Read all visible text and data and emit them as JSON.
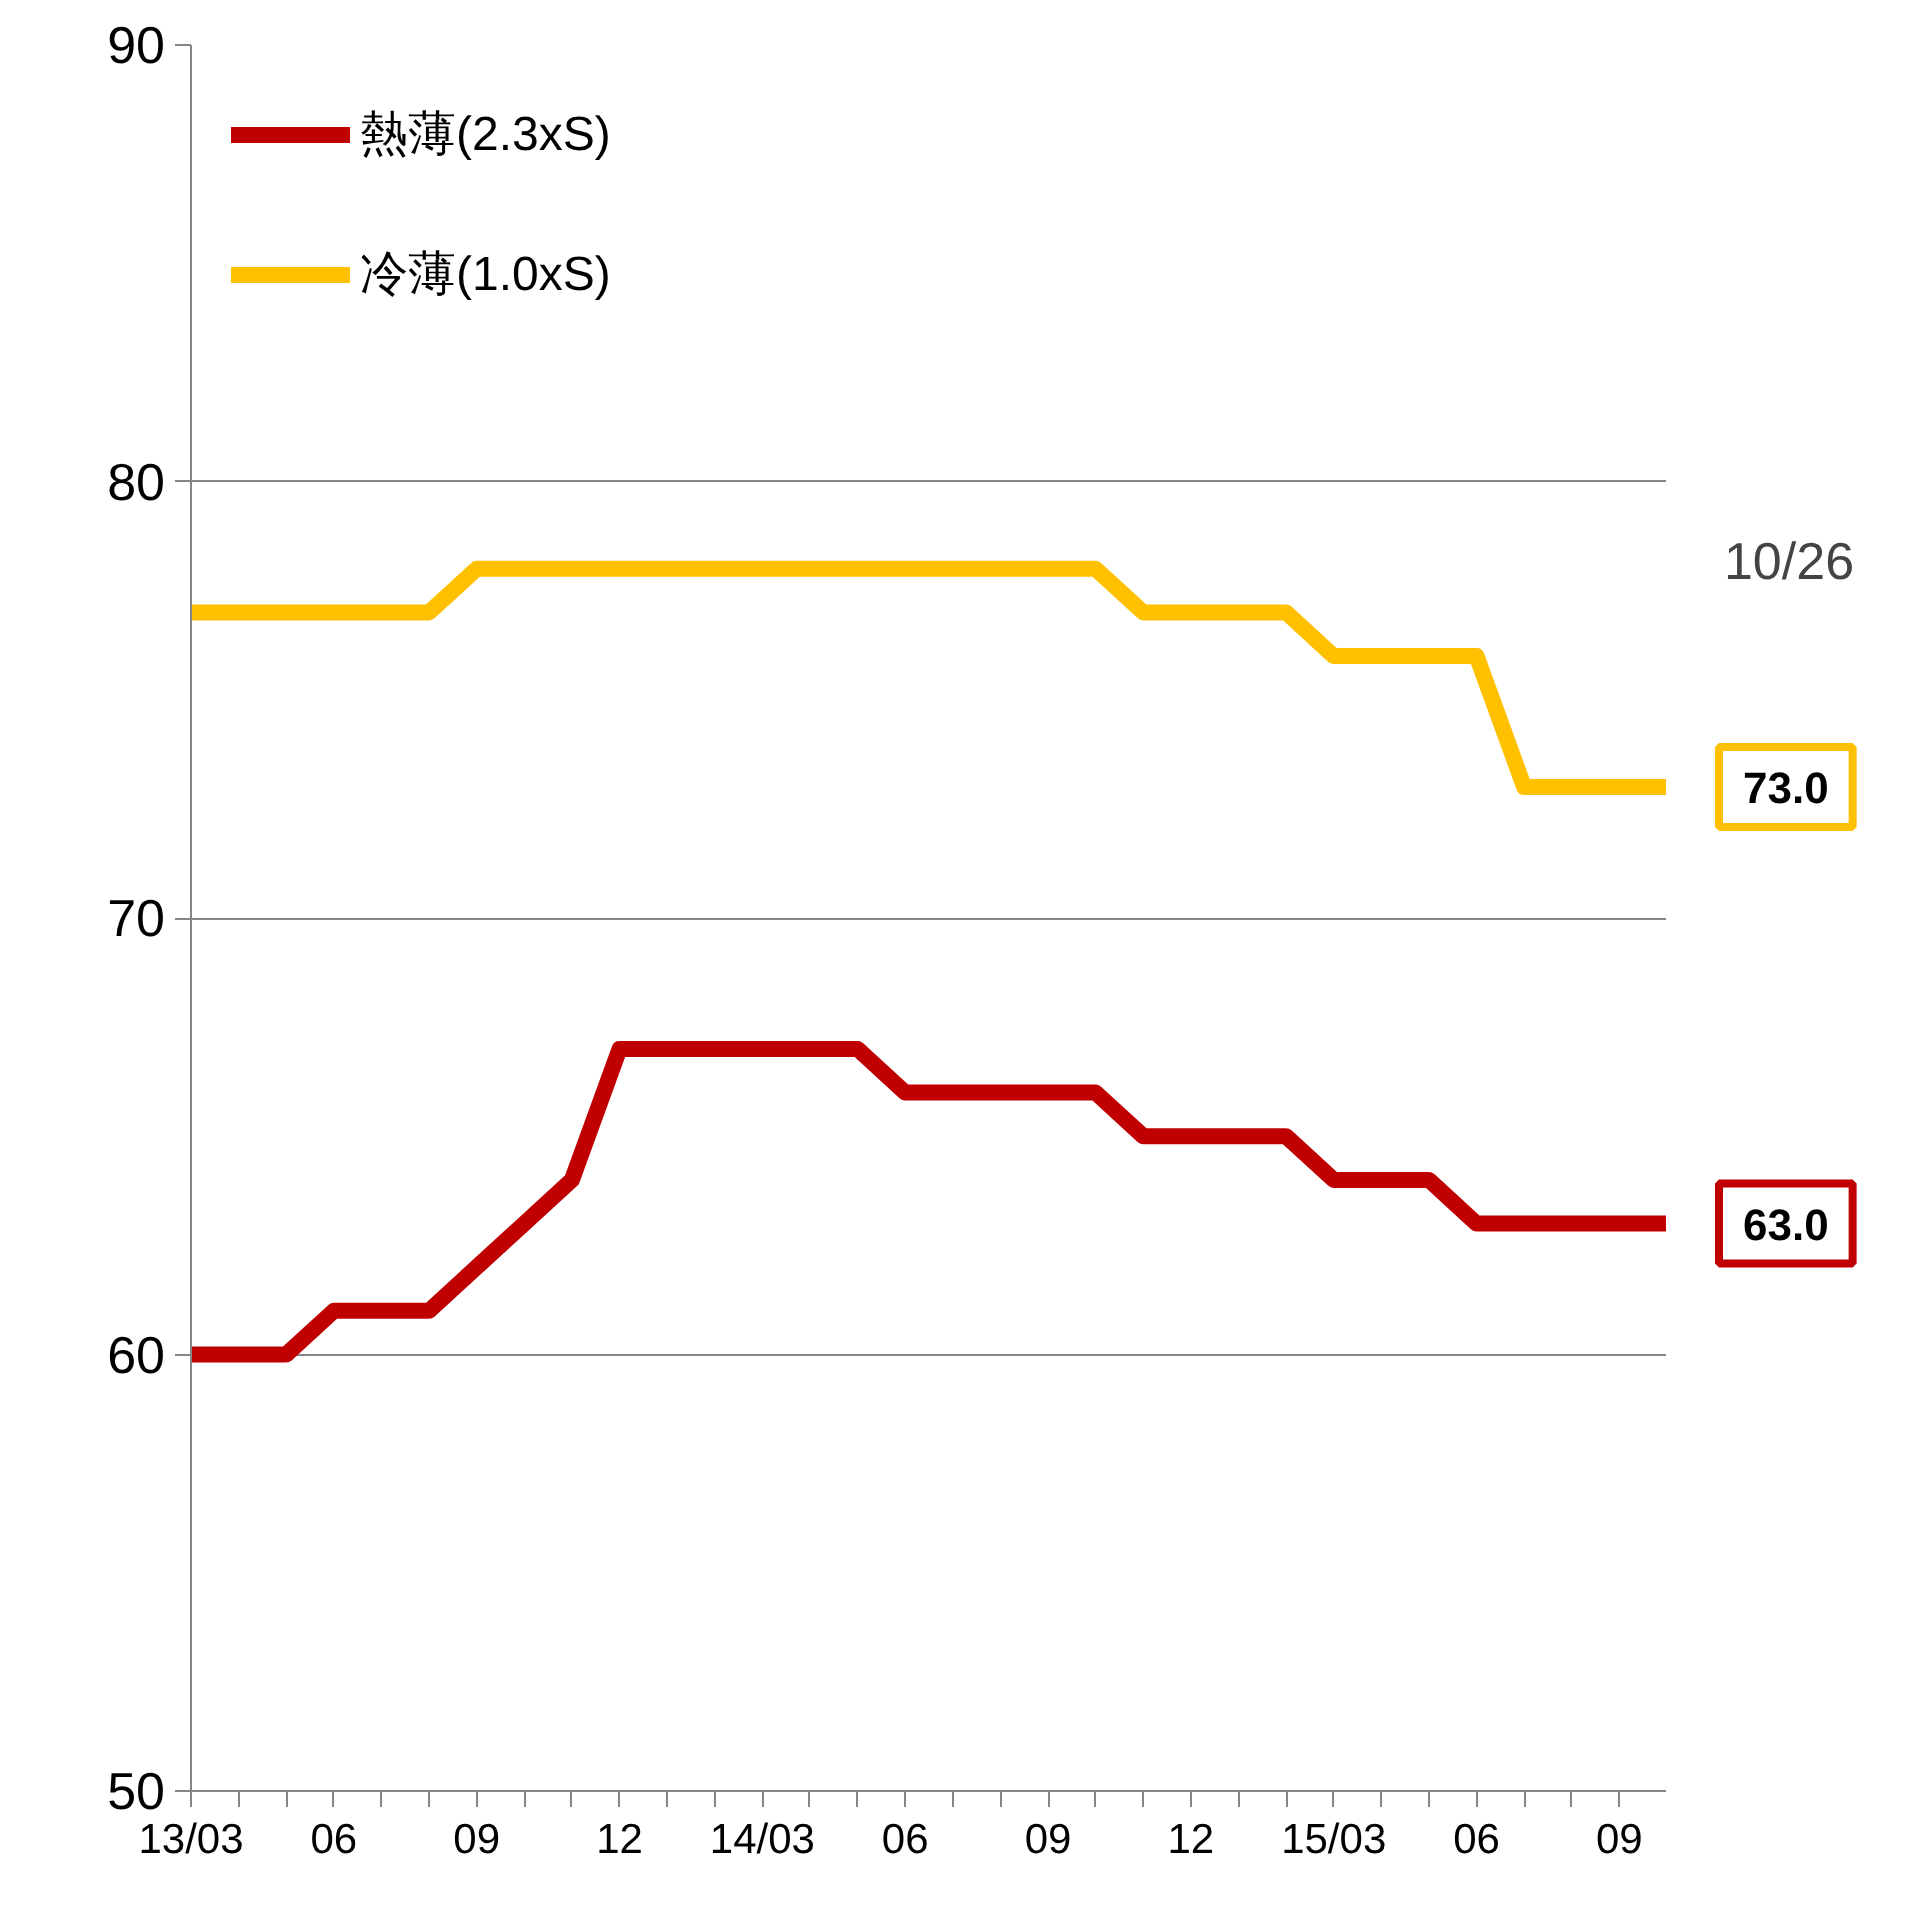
{
  "chart_data": {
    "type": "line",
    "categories": [
      "13/03",
      null,
      null,
      "06",
      null,
      null,
      "09",
      null,
      null,
      "12",
      null,
      null,
      "14/03",
      null,
      null,
      "06",
      null,
      null,
      "09",
      null,
      null,
      "12",
      null,
      null,
      "15/03",
      null,
      null,
      "06",
      null,
      null,
      "09",
      null
    ],
    "series": [
      {
        "name": "熱薄(2.3xS)",
        "color": "#c00000",
        "values": [
          60,
          60,
          60,
          61,
          61,
          61,
          62,
          63,
          64,
          67,
          67,
          67,
          67,
          67,
          67,
          66,
          66,
          66,
          66,
          66,
          65,
          65,
          65,
          65,
          64,
          64,
          64,
          63,
          63,
          63,
          63,
          63
        ],
        "value_labels": [
          null,
          null,
          null,
          null,
          null,
          null,
          null,
          null,
          null,
          null,
          null,
          null,
          null,
          null,
          null,
          null,
          null,
          null,
          null,
          null,
          null,
          null,
          null,
          null,
          null,
          null,
          null,
          null,
          null,
          null,
          null,
          "63.0"
        ]
      },
      {
        "name": "冷薄(1.0xS)",
        "color": "#ffc000",
        "values": [
          77,
          77,
          77,
          77,
          77,
          77,
          78,
          78,
          78,
          78,
          78,
          78,
          78,
          78,
          78,
          78,
          78,
          78,
          78,
          78,
          77,
          77,
          77,
          77,
          76,
          76,
          76,
          76,
          73,
          73,
          73,
          73
        ],
        "value_labels": [
          null,
          null,
          null,
          null,
          null,
          null,
          null,
          null,
          null,
          null,
          null,
          null,
          null,
          null,
          null,
          null,
          null,
          null,
          null,
          null,
          null,
          null,
          null,
          null,
          null,
          null,
          null,
          null,
          null,
          null,
          null,
          "73.0"
        ]
      }
    ],
    "ylim": [
      50,
      90
    ],
    "yticks": [
      50,
      60,
      70,
      80,
      90
    ],
    "grid": "y",
    "legend": "top left",
    "marker": "none",
    "line_style": "solid",
    "annotations": [
      "10/26"
    ]
  }
}
